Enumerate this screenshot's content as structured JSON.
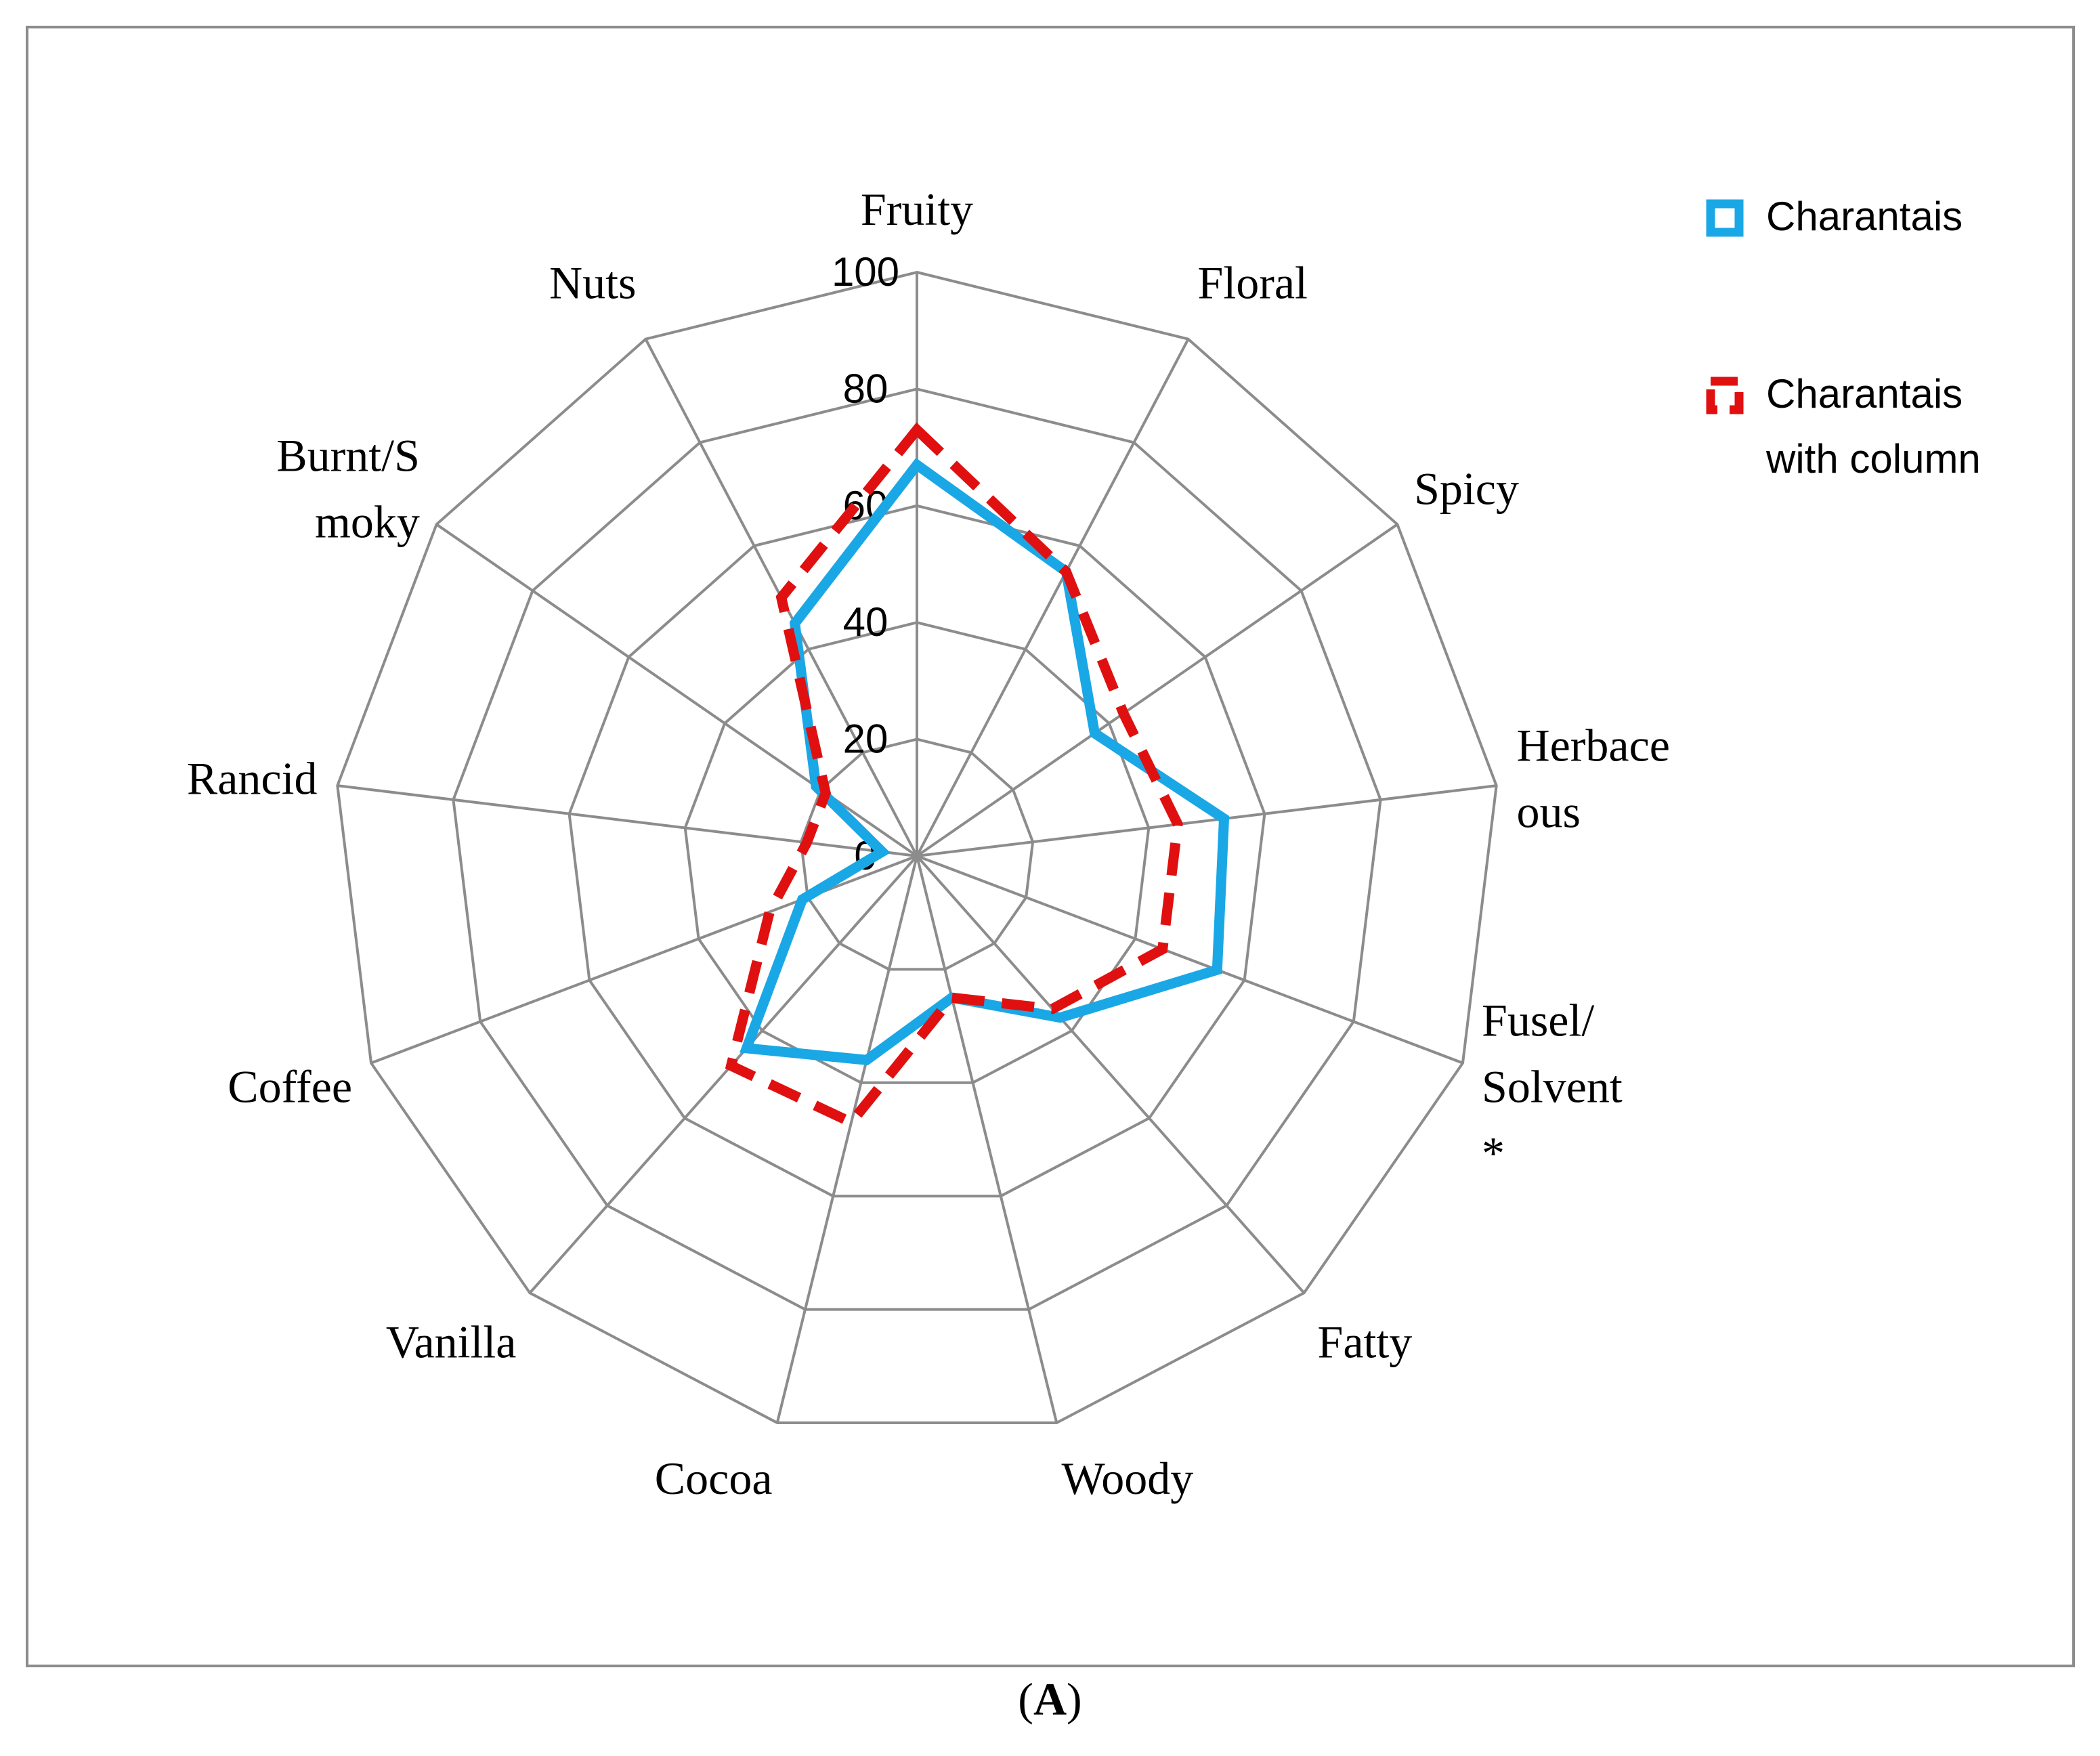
{
  "chart_data": {
    "type": "radar",
    "categories": [
      "Fruity",
      "Floral",
      "Spicy",
      "Herbaceous",
      "Fusel/Solvent *",
      "Fatty",
      "Woody",
      "Cocoa",
      "Vanilla",
      "Coffee",
      "Rancid",
      "Burnt/Smoky",
      "Nuts"
    ],
    "category_label_lines": [
      [
        "Fruity"
      ],
      [
        "Floral"
      ],
      [
        "Spicy"
      ],
      [
        "Herbace",
        "ous"
      ],
      [
        "Fusel/",
        "Solvent",
        "*"
      ],
      [
        "Fatty"
      ],
      [
        "Woody"
      ],
      [
        "Cocoa"
      ],
      [
        "Vanilla"
      ],
      [
        "Coffee"
      ],
      [
        "Rancid"
      ],
      [
        "Burnt/S",
        "moky"
      ],
      [
        "Nuts"
      ]
    ],
    "r_ticks": [
      0,
      20,
      40,
      60,
      80,
      100
    ],
    "r_range": [
      0,
      100
    ],
    "grid": true,
    "legend_position": "top-right",
    "series": [
      {
        "name": "Charantais",
        "color": "#1aa7e6",
        "style": "solid",
        "values": [
          67,
          55,
          37,
          53,
          55,
          37,
          25,
          36,
          44,
          21,
          6,
          21,
          45
        ]
      },
      {
        "name": "Charantais with column",
        "color": "#e01010",
        "style": "dashed",
        "values": [
          73,
          55,
          43,
          45,
          45,
          35,
          25,
          47,
          48,
          27,
          19,
          19,
          50
        ]
      }
    ],
    "legend_label_lines": [
      [
        "Charantais"
      ],
      [
        "Charantais",
        "with column"
      ]
    ]
  },
  "caption": {
    "open": "(",
    "letter": "A",
    "close": ")"
  }
}
